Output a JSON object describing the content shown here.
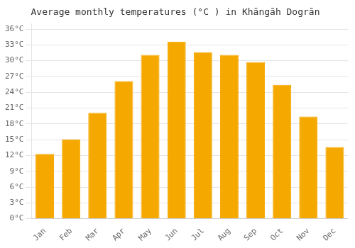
{
  "chart_data": {
    "type": "bar",
    "title": "Average monthly temperatures (°C ) in Khāngāh Dogrān",
    "categories": [
      "Jan",
      "Feb",
      "Mar",
      "Apr",
      "May",
      "Jun",
      "Jul",
      "Aug",
      "Sep",
      "Oct",
      "Nov",
      "Dec"
    ],
    "values": [
      12.3,
      15.1,
      20.1,
      26.1,
      31.1,
      33.6,
      31.6,
      31.1,
      29.7,
      25.4,
      19.4,
      13.6
    ],
    "color": "#F5A800",
    "ylim": [
      0,
      37
    ],
    "yticks": [
      {
        "value": 0,
        "label": "0°C"
      },
      {
        "value": 3,
        "label": "3°C"
      },
      {
        "value": 6,
        "label": "6°C"
      },
      {
        "value": 9,
        "label": "9°C"
      },
      {
        "value": 12,
        "label": "12°C"
      },
      {
        "value": 15,
        "label": "15°C"
      },
      {
        "value": 18,
        "label": "18°C"
      },
      {
        "value": 21,
        "label": "21°C"
      },
      {
        "value": 24,
        "label": "24°C"
      },
      {
        "value": 27,
        "label": "27°C"
      },
      {
        "value": 30,
        "label": "30°C"
      },
      {
        "value": 33,
        "label": "33°C"
      },
      {
        "value": 36,
        "label": "36°C"
      }
    ],
    "grid": true
  }
}
